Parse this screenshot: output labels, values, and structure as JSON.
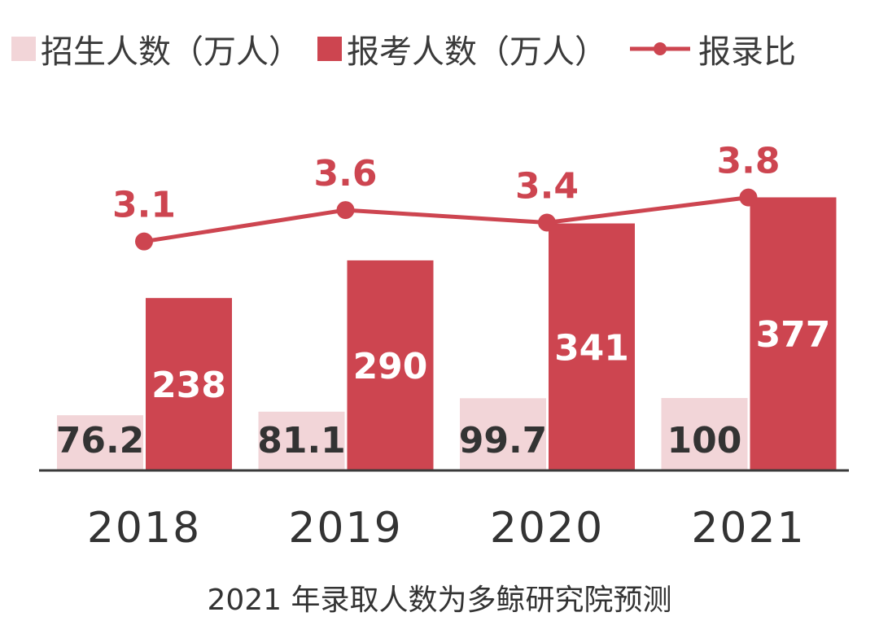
{
  "chart_data": {
    "type": "bar",
    "categories": [
      "2018",
      "2019",
      "2020",
      "2021"
    ],
    "series": [
      {
        "name": "招生人数（万人）",
        "type": "bar",
        "values": [
          76.2,
          81.1,
          99.7,
          100
        ],
        "color": "#f2d5d8"
      },
      {
        "name": "报考人数（万人）",
        "type": "bar",
        "values": [
          238,
          290,
          341,
          377
        ],
        "color": "#cd4550"
      },
      {
        "name": "报录比",
        "type": "line",
        "values": [
          3.1,
          3.6,
          3.4,
          3.8
        ],
        "color": "#cd4550"
      }
    ],
    "caption": "2021 年录取人数为多鲸研究院预测",
    "legend_position": "top",
    "grid": false,
    "ylim": [
      0,
      400
    ],
    "ratio_ylim": [
      0,
      5.35
    ]
  }
}
